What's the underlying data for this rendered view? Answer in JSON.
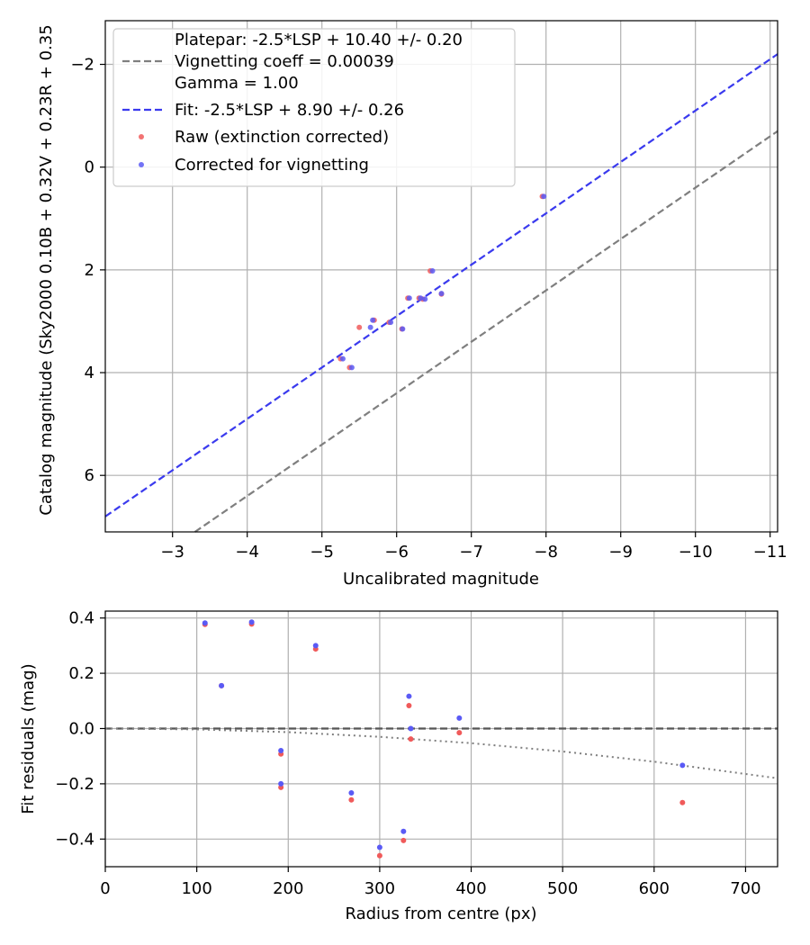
{
  "chart_data": [
    {
      "type": "scatter",
      "xlabel": "Uncalibrated magnitude",
      "ylabel": "Catalog magnitude (Sky2000 0.10B + 0.32V + 0.23R + 0.35",
      "xlim": [
        -2.1,
        -11.1
      ],
      "ylim": [
        7.1,
        -2.85
      ],
      "x_inverted": true,
      "y_inverted": true,
      "grid": true,
      "legend_position": "upper-left",
      "xticks": [
        -3,
        -4,
        -5,
        -6,
        -7,
        -8,
        -9,
        -10,
        -11
      ],
      "xtick_labels": [
        "−3",
        "−4",
        "−5",
        "−6",
        "−7",
        "−8",
        "−9",
        "−10",
        "−11"
      ],
      "yticks": [
        -2,
        0,
        2,
        4,
        6
      ],
      "ytick_labels": [
        "−2",
        "0",
        "2",
        "4",
        "6"
      ],
      "legend": [
        {
          "marker": "none",
          "label": "Platepar: -2.5*LSP + 10.40 +/- 0.20"
        },
        {
          "marker": "dash",
          "color": "#7f7f7f",
          "label": "Vignetting coeff = 0.00039"
        },
        {
          "marker": "none",
          "label": "Gamma = 1.00"
        },
        {
          "marker": "dash",
          "color": "#3a3aee",
          "label": "Fit: -2.5*LSP + 8.90 +/- 0.26"
        },
        {
          "marker": "dot",
          "color": "#f05a5a",
          "label": "Raw (extinction corrected)"
        },
        {
          "marker": "dot",
          "color": "#5a5af5",
          "label": "Corrected for vignetting"
        }
      ],
      "lines": [
        {
          "name": "Platepar",
          "slope": 1,
          "intercept": 10.4,
          "color": "#7f7f7f",
          "style": "dashed"
        },
        {
          "name": "Fit",
          "slope": 1,
          "intercept": 8.9,
          "color": "#3a3aee",
          "style": "dashed"
        }
      ],
      "series": [
        {
          "name": "Raw (extinction corrected)",
          "color": "#f05a5a",
          "points": [
            [
              -7.95,
              0.57
            ],
            [
              -6.45,
              2.02
            ],
            [
              -6.6,
              2.47
            ],
            [
              -6.3,
              2.55
            ],
            [
              -6.35,
              2.57
            ],
            [
              -6.15,
              2.55
            ],
            [
              -6.07,
              3.15
            ],
            [
              -5.9,
              3.02
            ],
            [
              -5.7,
              2.98
            ],
            [
              -5.5,
              3.12
            ],
            [
              -5.37,
              3.9
            ],
            [
              -5.25,
              3.73
            ]
          ]
        },
        {
          "name": "Corrected for vignetting",
          "color": "#5a5af5",
          "points": [
            [
              -7.97,
              0.57
            ],
            [
              -6.48,
              2.02
            ],
            [
              -6.6,
              2.46
            ],
            [
              -6.32,
              2.55
            ],
            [
              -6.38,
              2.57
            ],
            [
              -6.17,
              2.55
            ],
            [
              -6.08,
              3.15
            ],
            [
              -5.92,
              3.02
            ],
            [
              -5.68,
              2.98
            ],
            [
              -5.65,
              3.12
            ],
            [
              -5.4,
              3.9
            ],
            [
              -5.28,
              3.73
            ]
          ]
        }
      ]
    },
    {
      "type": "scatter",
      "xlabel": "Radius from centre (px)",
      "ylabel": "Fit residuals (mag)",
      "xlim": [
        0,
        735
      ],
      "ylim": [
        -0.5,
        0.425
      ],
      "grid": true,
      "xticks": [
        0,
        100,
        200,
        300,
        400,
        500,
        600,
        700
      ],
      "xtick_labels": [
        "0",
        "100",
        "200",
        "300",
        "400",
        "500",
        "600",
        "700"
      ],
      "yticks": [
        -0.4,
        -0.2,
        0.0,
        0.2,
        0.4
      ],
      "ytick_labels": [
        "−0.4",
        "−0.2",
        "0.0",
        "0.2",
        "0.4"
      ],
      "lines": [
        {
          "name": "zero",
          "color": "#555555",
          "style": "dashed",
          "points": [
            [
              0,
              0
            ],
            [
              735,
              0
            ]
          ]
        },
        {
          "name": "vignetting",
          "color": "#7f7f7f",
          "style": "dotted",
          "points": [
            [
              0,
              0
            ],
            [
              100,
              -0.003
            ],
            [
              200,
              -0.013
            ],
            [
              300,
              -0.03
            ],
            [
              400,
              -0.053
            ],
            [
              500,
              -0.083
            ],
            [
              600,
              -0.12
            ],
            [
              735,
              -0.18
            ]
          ]
        }
      ],
      "series": [
        {
          "name": "Raw (extinction corrected)",
          "color": "#f05a5a",
          "points": [
            [
              109,
              0.377
            ],
            [
              127,
              0.155
            ],
            [
              160,
              0.378
            ],
            [
              192,
              -0.092
            ],
            [
              192,
              -0.213
            ],
            [
              230,
              0.288
            ],
            [
              269,
              -0.258
            ],
            [
              300,
              -0.46
            ],
            [
              326,
              -0.405
            ],
            [
              332,
              0.083
            ],
            [
              334,
              -0.038
            ],
            [
              387,
              -0.015
            ],
            [
              631,
              -0.268
            ]
          ]
        },
        {
          "name": "Corrected for vignetting",
          "color": "#5a5af5",
          "points": [
            [
              109,
              0.382
            ],
            [
              127,
              0.155
            ],
            [
              160,
              0.385
            ],
            [
              192,
              -0.08
            ],
            [
              192,
              -0.2
            ],
            [
              230,
              0.3
            ],
            [
              269,
              -0.233
            ],
            [
              300,
              -0.43
            ],
            [
              326,
              -0.372
            ],
            [
              332,
              0.117
            ],
            [
              334,
              0.0
            ],
            [
              387,
              0.038
            ],
            [
              631,
              -0.133
            ]
          ]
        }
      ]
    }
  ]
}
